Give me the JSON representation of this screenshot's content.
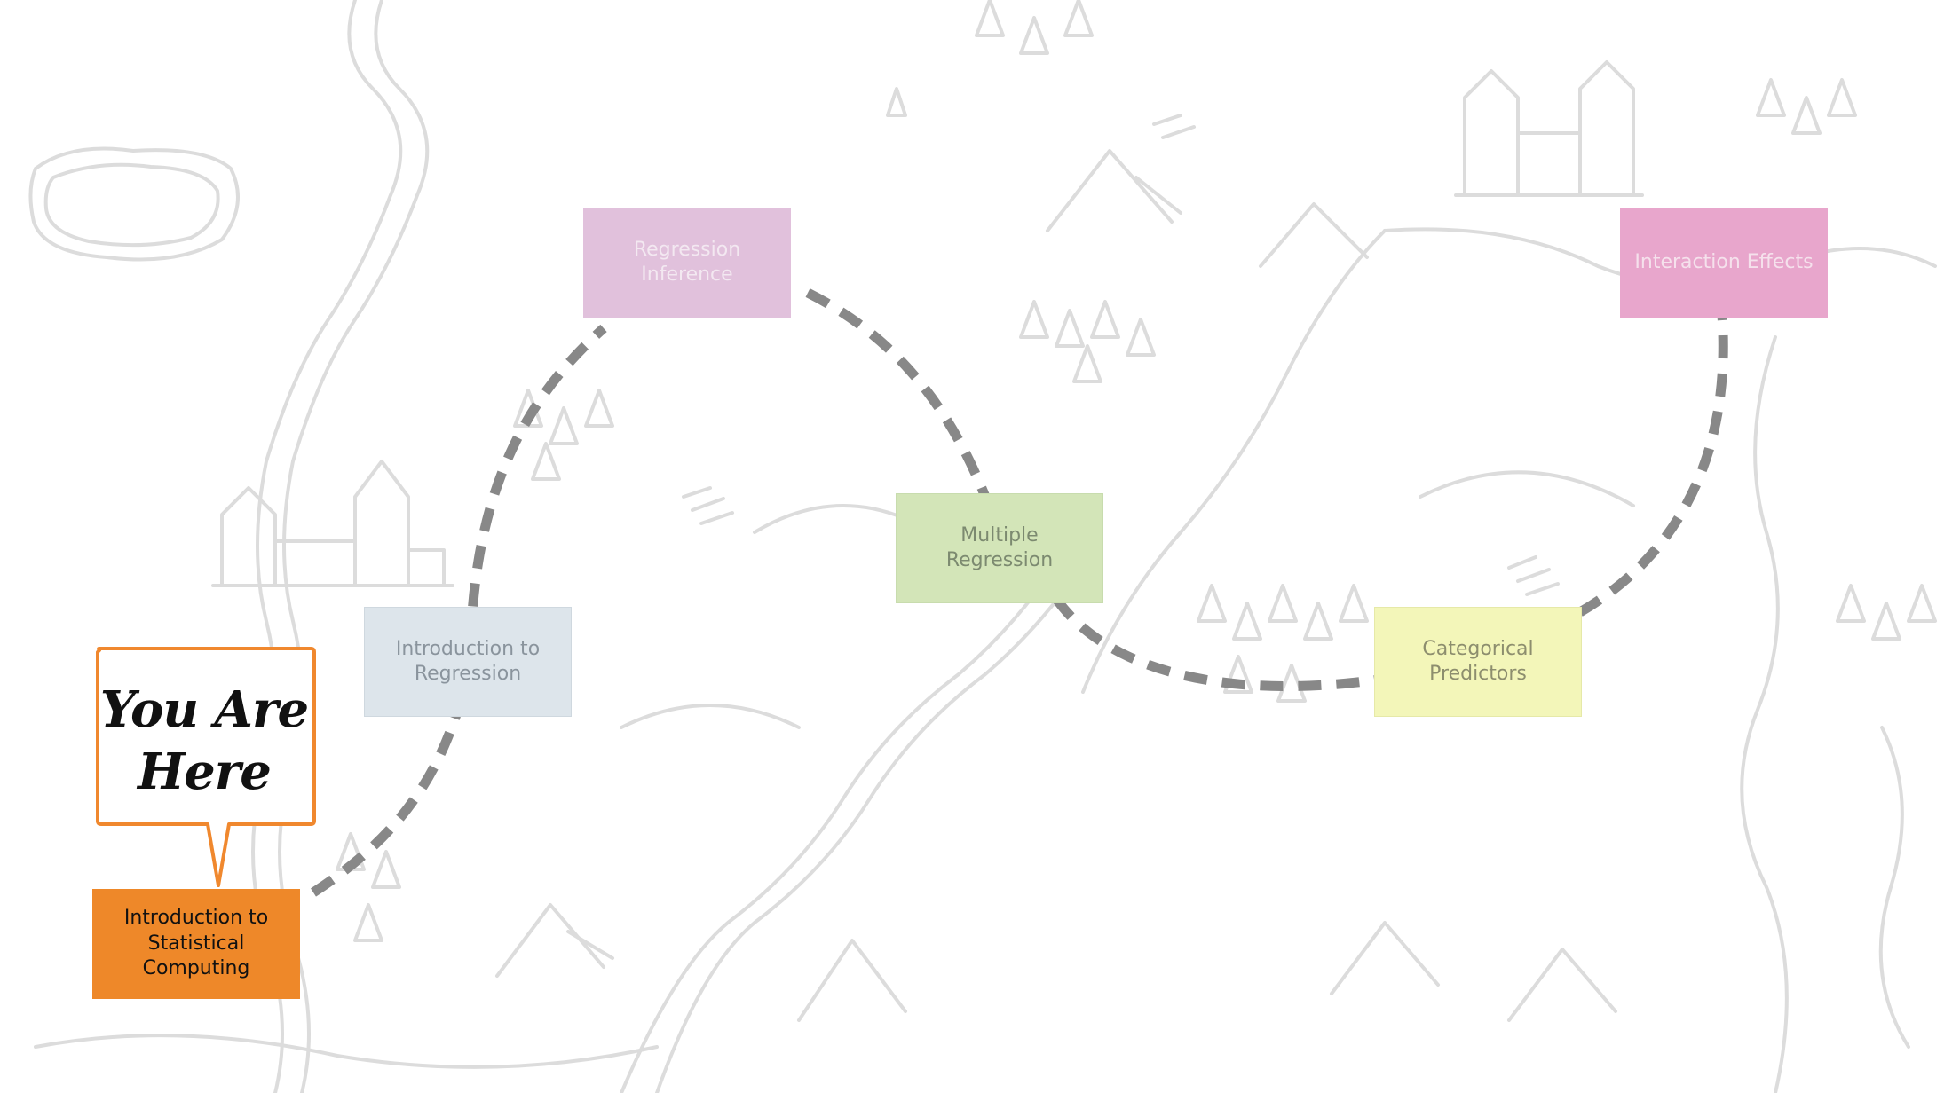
{
  "callout": {
    "text": "You Are\nHere",
    "border_color": "#f0882e"
  },
  "path_color": "#888888",
  "nodes": [
    {
      "id": "intro-statistical-computing",
      "label": "Introduction to Statistical Computing",
      "fill": "#ee8829",
      "text_color": "#111111",
      "current": true
    },
    {
      "id": "intro-regression",
      "label": "Introduction to Regression",
      "fill": "#dde5eb",
      "text_color": "#8a949d"
    },
    {
      "id": "regression-inference",
      "label": "Regression Inference",
      "fill": "#e1c1dc",
      "text_color": "#f3e8f1"
    },
    {
      "id": "multiple-regression",
      "label": "Multiple Regression",
      "fill": "#d3e5b8",
      "text_color": "#7c8a70"
    },
    {
      "id": "categorical-predictors",
      "label": "Categorical Predictors",
      "fill": "#f3f6b9",
      "text_color": "#8d8e6e"
    },
    {
      "id": "interaction-effects",
      "label": "Interaction Effects",
      "fill": "#e8a6cc",
      "text_color": "#f5e1ec"
    }
  ]
}
